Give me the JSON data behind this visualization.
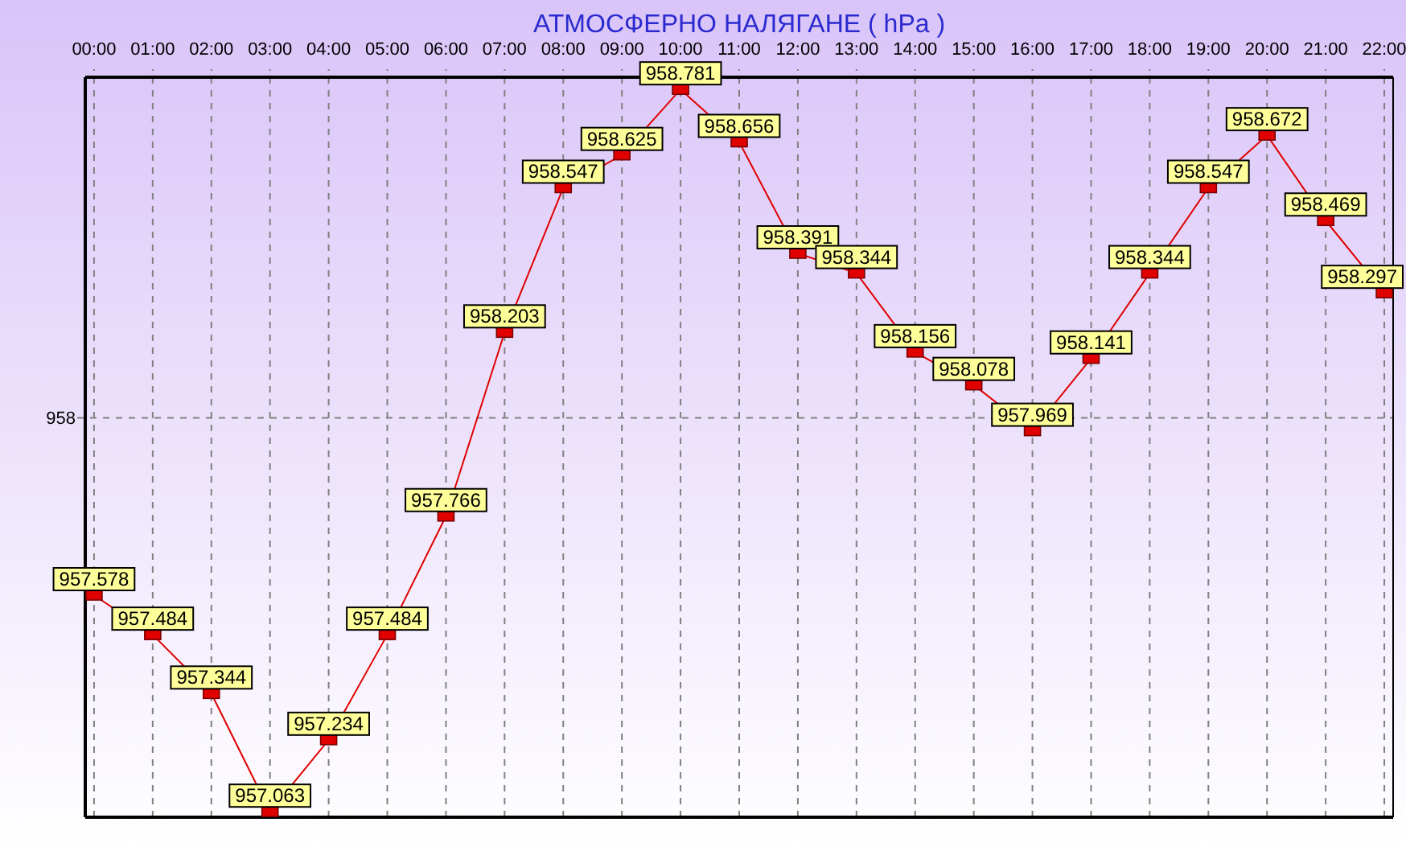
{
  "chart_data": {
    "type": "line",
    "title": "АТМОСФЕРНО НАЛЯГАНЕ ( hPa )",
    "x": [
      0,
      1,
      2,
      3,
      4,
      5,
      6,
      7,
      8,
      9,
      10,
      11,
      12,
      13,
      14,
      15,
      16,
      17,
      18,
      19,
      20,
      21,
      22
    ],
    "xlim": [
      -0.15,
      22.15
    ],
    "xticks": [
      {
        "value": 0,
        "label": "00:00"
      },
      {
        "value": 1,
        "label": "01:00"
      },
      {
        "value": 2,
        "label": "02:00"
      },
      {
        "value": 3,
        "label": "03:00"
      },
      {
        "value": 4,
        "label": "04:00"
      },
      {
        "value": 5,
        "label": "05:00"
      },
      {
        "value": 6,
        "label": "06:00"
      },
      {
        "value": 7,
        "label": "07:00"
      },
      {
        "value": 8,
        "label": "08:00"
      },
      {
        "value": 9,
        "label": "09:00"
      },
      {
        "value": 10,
        "label": "10:00"
      },
      {
        "value": 11,
        "label": "11:00"
      },
      {
        "value": 12,
        "label": "12:00"
      },
      {
        "value": 13,
        "label": "13:00"
      },
      {
        "value": 14,
        "label": "14:00"
      },
      {
        "value": 15,
        "label": "15:00"
      },
      {
        "value": 16,
        "label": "16:00"
      },
      {
        "value": 17,
        "label": "17:00"
      },
      {
        "value": 18,
        "label": "18:00"
      },
      {
        "value": 19,
        "label": "19:00"
      },
      {
        "value": 20,
        "label": "20:00"
      },
      {
        "value": 21,
        "label": "21:00"
      },
      {
        "value": 22,
        "label": "22:00"
      }
    ],
    "ylim": [
      957.05,
      958.81
    ],
    "ref_lines": [
      {
        "axis": "y",
        "value": 958,
        "label": "958",
        "color": "#808080",
        "line_style": "dashed"
      }
    ],
    "series": [
      {
        "color": "#e00000",
        "values": [
          957.578,
          957.484,
          957.344,
          957.063,
          957.234,
          957.484,
          957.766,
          958.203,
          958.547,
          958.625,
          958.781,
          958.656,
          958.391,
          958.344,
          958.156,
          958.078,
          957.969,
          958.141,
          958.344,
          958.547,
          958.672,
          958.469,
          958.297
        ]
      }
    ],
    "data_labels": true,
    "grid": "x",
    "marker": "square",
    "line_style": "solid"
  }
}
